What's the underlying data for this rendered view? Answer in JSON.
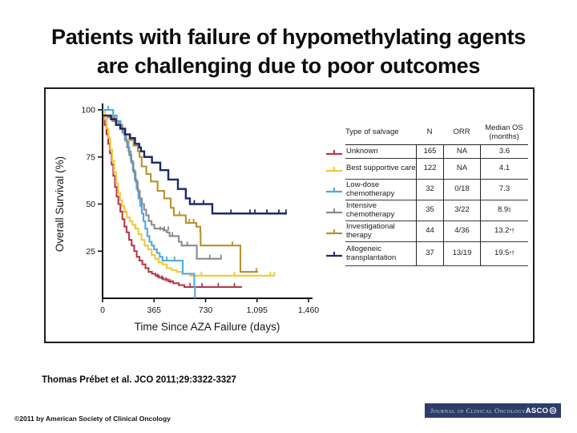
{
  "slide": {
    "title_line1": "Patients with failure of  hypomethylating agents",
    "title_line2": "are challenging due to poor outcomes",
    "citation": "Thomas Prébet et al. JCO 2011;29:3322-3327",
    "copyright": "©2011 by American Society of Clinical Oncology",
    "journal_banner": {
      "journal": "Journal of Clinical Oncology",
      "org": "ASCO",
      "bg": "#2d3c69"
    }
  },
  "chart_data": {
    "type": "line",
    "subtype": "kaplan-meier-step",
    "title": "",
    "xlabel": "Time Since AZA Failure (days)",
    "ylabel": "Overall Survival (%)",
    "xlim": [
      0,
      1460
    ],
    "ylim": [
      0,
      100
    ],
    "xticks": [
      0,
      365,
      730,
      1095,
      1460
    ],
    "xtick_labels": [
      "0",
      "365",
      "730",
      "1,095",
      "1,460"
    ],
    "yticks": [
      25,
      50,
      75,
      100
    ],
    "grid": false,
    "legend_position": "table-right",
    "series": [
      {
        "name": "Unknown",
        "color": "#b5384d",
        "points": [
          [
            0,
            97
          ],
          [
            15,
            92
          ],
          [
            28,
            87
          ],
          [
            40,
            82
          ],
          [
            52,
            77
          ],
          [
            64,
            71
          ],
          [
            76,
            65
          ],
          [
            88,
            59
          ],
          [
            100,
            54
          ],
          [
            112,
            50
          ],
          [
            126,
            46
          ],
          [
            140,
            42
          ],
          [
            155,
            38
          ],
          [
            170,
            35
          ],
          [
            188,
            31
          ],
          [
            206,
            28
          ],
          [
            224,
            25
          ],
          [
            242,
            22
          ],
          [
            262,
            20
          ],
          [
            282,
            18
          ],
          [
            304,
            16
          ],
          [
            326,
            14
          ],
          [
            350,
            13
          ],
          [
            375,
            12
          ],
          [
            400,
            11
          ],
          [
            430,
            10
          ],
          [
            465,
            9
          ],
          [
            500,
            8
          ],
          [
            540,
            7
          ],
          [
            580,
            6
          ],
          [
            988,
            6
          ]
        ],
        "censors": [
          [
            390,
            11
          ],
          [
            420,
            10
          ],
          [
            450,
            9
          ],
          [
            480,
            8
          ],
          [
            620,
            6
          ],
          [
            705,
            6
          ],
          [
            820,
            6
          ],
          [
            935,
            6
          ]
        ]
      },
      {
        "name": "Best supportive care",
        "color": "#f0c839",
        "points": [
          [
            0,
            100
          ],
          [
            18,
            95
          ],
          [
            30,
            90
          ],
          [
            42,
            85
          ],
          [
            55,
            79
          ],
          [
            68,
            73
          ],
          [
            82,
            67
          ],
          [
            96,
            61
          ],
          [
            110,
            56
          ],
          [
            124,
            52
          ],
          [
            138,
            49
          ],
          [
            154,
            46
          ],
          [
            172,
            43
          ],
          [
            192,
            41
          ],
          [
            212,
            39
          ],
          [
            232,
            37
          ],
          [
            254,
            34
          ],
          [
            276,
            31
          ],
          [
            298,
            28
          ],
          [
            322,
            26
          ],
          [
            348,
            23
          ],
          [
            372,
            21
          ],
          [
            398,
            19
          ],
          [
            425,
            18
          ],
          [
            455,
            16
          ],
          [
            490,
            15
          ],
          [
            525,
            14
          ],
          [
            565,
            13
          ],
          [
            620,
            12
          ],
          [
            1221,
            12
          ]
        ],
        "censors": [
          [
            160,
            45
          ],
          [
            235,
            37
          ],
          [
            700,
            12
          ],
          [
            935,
            12
          ],
          [
            1190,
            12
          ],
          [
            1218,
            12
          ]
        ]
      },
      {
        "name": "Low-dose chemotherapy",
        "color": "#4fa8e0",
        "points": [
          [
            0,
            100
          ],
          [
            60,
            100
          ],
          [
            75,
            97
          ],
          [
            100,
            94
          ],
          [
            128,
            90
          ],
          [
            150,
            87
          ],
          [
            168,
            83
          ],
          [
            184,
            78
          ],
          [
            200,
            73
          ],
          [
            214,
            68
          ],
          [
            228,
            63
          ],
          [
            241,
            58
          ],
          [
            254,
            53
          ],
          [
            266,
            49
          ],
          [
            278,
            45
          ],
          [
            290,
            41
          ],
          [
            303,
            37
          ],
          [
            317,
            33
          ],
          [
            332,
            30
          ],
          [
            348,
            28
          ],
          [
            365,
            26
          ],
          [
            385,
            24
          ],
          [
            405,
            22
          ],
          [
            425,
            20
          ],
          [
            560,
            20
          ],
          [
            568,
            13
          ],
          [
            645,
            13
          ],
          [
            650,
            6
          ],
          [
            655,
            0
          ]
        ],
        "censors": [
          [
            40,
            100
          ],
          [
            455,
            20
          ],
          [
            510,
            20
          ]
        ]
      },
      {
        "name": "Intensive chemotherapy",
        "color": "#8a8a8c",
        "points": [
          [
            0,
            97
          ],
          [
            45,
            96
          ],
          [
            85,
            94
          ],
          [
            115,
            92
          ],
          [
            140,
            88
          ],
          [
            158,
            84
          ],
          [
            174,
            80
          ],
          [
            189,
            76
          ],
          [
            204,
            72
          ],
          [
            219,
            67
          ],
          [
            234,
            62
          ],
          [
            249,
            57
          ],
          [
            264,
            53
          ],
          [
            279,
            50
          ],
          [
            294,
            47
          ],
          [
            309,
            44
          ],
          [
            327,
            41
          ],
          [
            347,
            39
          ],
          [
            367,
            37
          ],
          [
            432,
            36
          ],
          [
            455,
            35
          ],
          [
            475,
            33
          ],
          [
            540,
            30
          ],
          [
            560,
            28
          ],
          [
            665,
            28
          ],
          [
            668,
            21
          ],
          [
            845,
            21
          ]
        ],
        "censors": [
          [
            409,
            36
          ],
          [
            438,
            36
          ],
          [
            466,
            36
          ],
          [
            495,
            33
          ],
          [
            600,
            28
          ],
          [
            760,
            21
          ],
          [
            840,
            21
          ]
        ]
      },
      {
        "name": "Investigational therapy",
        "color": "#b6922e",
        "points": [
          [
            0,
            97
          ],
          [
            35,
            96
          ],
          [
            70,
            94
          ],
          [
            100,
            92
          ],
          [
            130,
            90
          ],
          [
            160,
            87
          ],
          [
            190,
            84
          ],
          [
            220,
            81
          ],
          [
            250,
            78
          ],
          [
            262,
            75
          ],
          [
            277,
            70
          ],
          [
            310,
            66
          ],
          [
            342,
            62
          ],
          [
            390,
            57
          ],
          [
            437,
            53
          ],
          [
            483,
            48
          ],
          [
            505,
            44
          ],
          [
            590,
            40
          ],
          [
            665,
            38
          ],
          [
            693,
            35
          ],
          [
            695,
            28
          ],
          [
            977,
            28
          ],
          [
            977,
            14
          ],
          [
            1102,
            14
          ]
        ],
        "censors": [
          [
            545,
            44
          ],
          [
            615,
            40
          ],
          [
            645,
            40
          ],
          [
            920,
            28
          ],
          [
            1090,
            14
          ]
        ]
      },
      {
        "name": "Allogeneic transplantation",
        "color": "#1b2a68",
        "points": [
          [
            0,
            97
          ],
          [
            30,
            97
          ],
          [
            60,
            95
          ],
          [
            95,
            92
          ],
          [
            125,
            90
          ],
          [
            160,
            87
          ],
          [
            195,
            85
          ],
          [
            230,
            82
          ],
          [
            260,
            80
          ],
          [
            272,
            78
          ],
          [
            295,
            75
          ],
          [
            350,
            72
          ],
          [
            409,
            68
          ],
          [
            466,
            63
          ],
          [
            534,
            58
          ],
          [
            590,
            53
          ],
          [
            619,
            50
          ],
          [
            778,
            50
          ],
          [
            778,
            45
          ],
          [
            1307,
            45
          ]
        ],
        "censors": [
          [
            272,
            78
          ],
          [
            650,
            50
          ],
          [
            715,
            50
          ],
          [
            910,
            45
          ],
          [
            1045,
            45
          ],
          [
            1080,
            45
          ],
          [
            1165,
            45
          ],
          [
            1250,
            45
          ],
          [
            1300,
            45
          ]
        ]
      }
    ]
  },
  "figure": {
    "table": {
      "headers": [
        "Type of salvage",
        "N",
        "ORR",
        "Median OS\n(months)"
      ],
      "rows": [
        {
          "label": "Unknown",
          "n": "165",
          "orr": "NA",
          "os": "3.6",
          "os_sup": "",
          "color": "#b5384d"
        },
        {
          "label": "Best supportive care",
          "n": "122",
          "orr": "NA",
          "os": "4.1",
          "os_sup": "",
          "color": "#f0c839"
        },
        {
          "label": "Low-dose chemotherapy",
          "n": "32",
          "orr": "0/18",
          "os": "7.3",
          "os_sup": "",
          "color": "#4fa8e0"
        },
        {
          "label": "Intensive chemotherapy",
          "n": "35",
          "orr": "3/22",
          "os": "8.9",
          "os_sup": "‡",
          "color": "#8a8a8c"
        },
        {
          "label": "Investigational therapy",
          "n": "44",
          "orr": "4/36",
          "os": "13.2",
          "os_sup": "*†",
          "color": "#b6922e"
        },
        {
          "label": "Allogeneic transplantation",
          "n": "37",
          "orr": "13/19",
          "os": "19.5",
          "os_sup": "*†",
          "color": "#1b2a68"
        }
      ]
    }
  }
}
